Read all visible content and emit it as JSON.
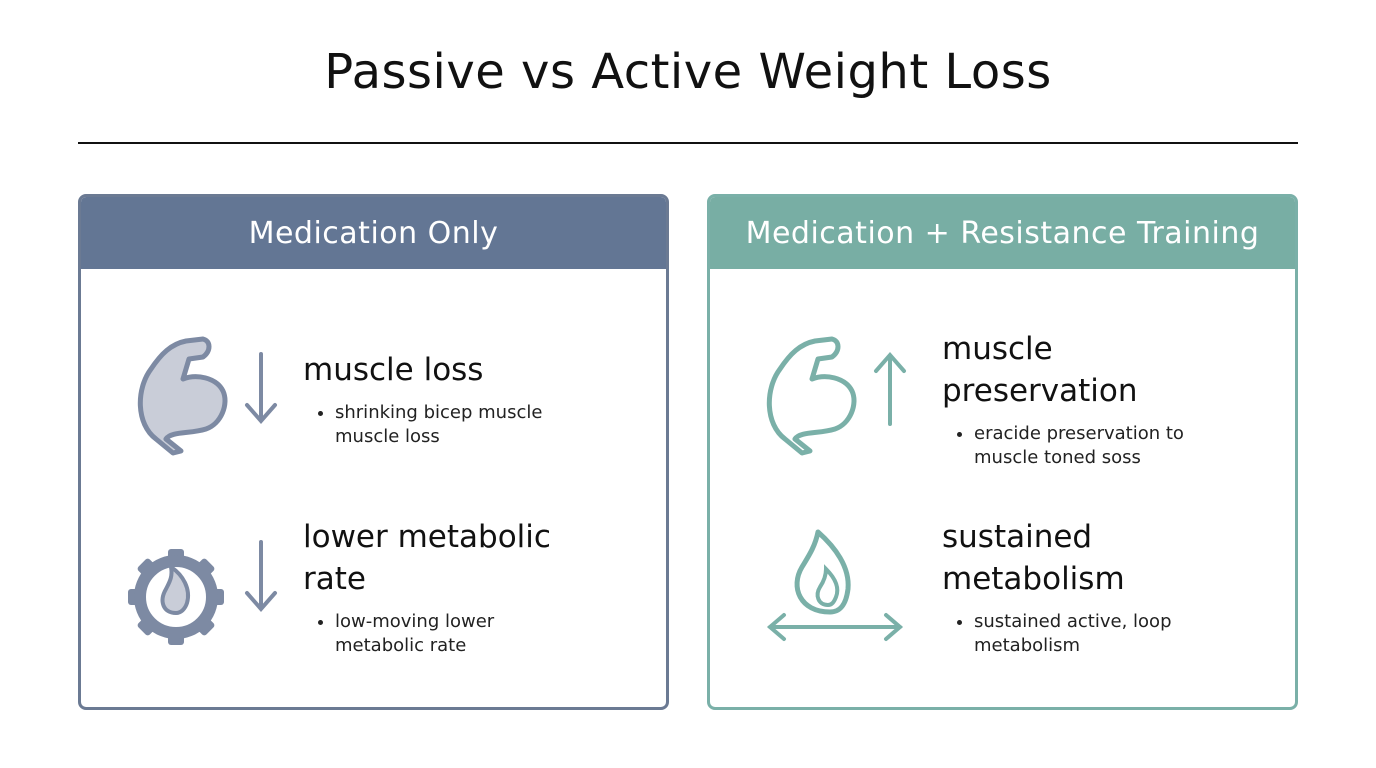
{
  "header": {
    "title": "Passive vs Active Weight Loss"
  },
  "panels": [
    {
      "title": "Medication Only",
      "items": [
        {
          "heading": [
            "muscle loss"
          ],
          "bullet": [
            "shrinking bicep muscle",
            "muscle loss"
          ]
        },
        {
          "heading": [
            "lower metabolic",
            "rate"
          ],
          "bullet": [
            "low-moving lower",
            "metabolic rate"
          ]
        }
      ]
    },
    {
      "title": "Medication + Resistance Training",
      "items": [
        {
          "heading": [
            "muscle",
            "preservation"
          ],
          "bullet": [
            "eracide preservation to",
            "muscle toned soss"
          ]
        },
        {
          "heading": [
            "sustained",
            "metabolism"
          ],
          "bullet": [
            "sustained active, loop",
            "metabolism"
          ]
        }
      ]
    }
  ]
}
